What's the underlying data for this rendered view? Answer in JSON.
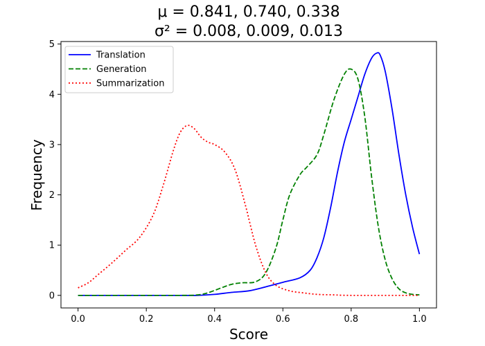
{
  "chart_data": {
    "type": "line",
    "title": "μ = 0.841, 0.740, 0.338",
    "subtitle": "σ² = 0.008, 0.009, 0.013",
    "xlabel": "Score",
    "ylabel": "Frequency",
    "xlim": [
      -0.05,
      1.05
    ],
    "ylim": [
      -0.25,
      5.05
    ],
    "xticks": [
      "0.0",
      "0.2",
      "0.4",
      "0.6",
      "0.8",
      "1.0"
    ],
    "yticks": [
      "0",
      "1",
      "2",
      "3",
      "4",
      "5"
    ],
    "grid": false,
    "legend_position": "top-left",
    "series": [
      {
        "name": "Translation",
        "color": "#0000ff",
        "linestyle": "solid",
        "points": [
          [
            0.0,
            0.0
          ],
          [
            0.3,
            0.0
          ],
          [
            0.35,
            0.0
          ],
          [
            0.4,
            0.02
          ],
          [
            0.45,
            0.06
          ],
          [
            0.5,
            0.09
          ],
          [
            0.55,
            0.17
          ],
          [
            0.6,
            0.26
          ],
          [
            0.65,
            0.35
          ],
          [
            0.68,
            0.5
          ],
          [
            0.7,
            0.75
          ],
          [
            0.72,
            1.15
          ],
          [
            0.74,
            1.75
          ],
          [
            0.76,
            2.45
          ],
          [
            0.78,
            3.05
          ],
          [
            0.8,
            3.5
          ],
          [
            0.82,
            3.95
          ],
          [
            0.84,
            4.4
          ],
          [
            0.86,
            4.72
          ],
          [
            0.875,
            4.82
          ],
          [
            0.885,
            4.78
          ],
          [
            0.9,
            4.45
          ],
          [
            0.92,
            3.7
          ],
          [
            0.94,
            2.8
          ],
          [
            0.96,
            2.0
          ],
          [
            0.98,
            1.35
          ],
          [
            1.0,
            0.82
          ]
        ]
      },
      {
        "name": "Generation",
        "color": "#008000",
        "linestyle": "dashed",
        "points": [
          [
            0.0,
            0.0
          ],
          [
            0.3,
            0.0
          ],
          [
            0.35,
            0.01
          ],
          [
            0.38,
            0.05
          ],
          [
            0.42,
            0.15
          ],
          [
            0.45,
            0.22
          ],
          [
            0.48,
            0.25
          ],
          [
            0.52,
            0.27
          ],
          [
            0.55,
            0.45
          ],
          [
            0.58,
            0.95
          ],
          [
            0.6,
            1.5
          ],
          [
            0.62,
            2.0
          ],
          [
            0.65,
            2.4
          ],
          [
            0.67,
            2.55
          ],
          [
            0.7,
            2.8
          ],
          [
            0.72,
            3.2
          ],
          [
            0.75,
            3.9
          ],
          [
            0.78,
            4.4
          ],
          [
            0.8,
            4.5
          ],
          [
            0.82,
            4.3
          ],
          [
            0.84,
            3.55
          ],
          [
            0.86,
            2.35
          ],
          [
            0.88,
            1.35
          ],
          [
            0.9,
            0.7
          ],
          [
            0.92,
            0.33
          ],
          [
            0.94,
            0.13
          ],
          [
            0.96,
            0.05
          ],
          [
            0.98,
            0.02
          ],
          [
            1.0,
            0.01
          ]
        ]
      },
      {
        "name": "Summarization",
        "color": "#ff0000",
        "linestyle": "dotted",
        "points": [
          [
            0.0,
            0.15
          ],
          [
            0.03,
            0.25
          ],
          [
            0.06,
            0.42
          ],
          [
            0.1,
            0.65
          ],
          [
            0.14,
            0.9
          ],
          [
            0.18,
            1.15
          ],
          [
            0.22,
            1.6
          ],
          [
            0.25,
            2.2
          ],
          [
            0.28,
            2.9
          ],
          [
            0.3,
            3.25
          ],
          [
            0.32,
            3.38
          ],
          [
            0.34,
            3.32
          ],
          [
            0.36,
            3.15
          ],
          [
            0.38,
            3.05
          ],
          [
            0.4,
            3.0
          ],
          [
            0.43,
            2.85
          ],
          [
            0.46,
            2.5
          ],
          [
            0.49,
            1.8
          ],
          [
            0.52,
            1.0
          ],
          [
            0.55,
            0.45
          ],
          [
            0.58,
            0.2
          ],
          [
            0.62,
            0.09
          ],
          [
            0.66,
            0.05
          ],
          [
            0.7,
            0.02
          ],
          [
            0.75,
            0.01
          ],
          [
            0.8,
            0.0
          ],
          [
            1.0,
            0.0
          ]
        ]
      }
    ]
  }
}
